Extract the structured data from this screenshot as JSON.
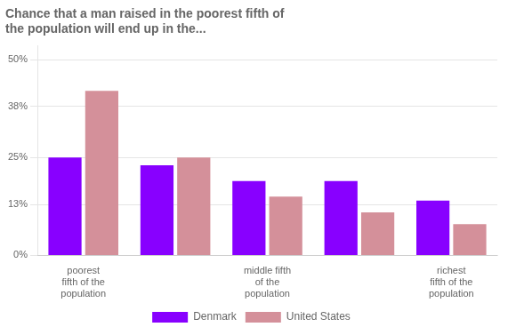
{
  "chart_data": {
    "type": "bar",
    "title": "Chance that a man raised in the poorest fifth of\nthe population will end up in the...",
    "categories": [
      "poorest\nfifth of the\npopulation",
      null,
      "middle fifth\nof the\npopulation",
      null,
      "richest\nfifth of the\npopulation"
    ],
    "series": [
      {
        "name": "Denmark",
        "color": "#8800ff",
        "values": [
          0.25,
          0.23,
          0.19,
          0.19,
          0.14
        ]
      },
      {
        "name": "United States",
        "color": "#d4909a",
        "values": [
          0.42,
          0.25,
          0.15,
          0.11,
          0.08
        ]
      }
    ],
    "ylim": [
      0,
      0.535
    ],
    "yticks": [
      {
        "value": 0.0,
        "label": "0%"
      },
      {
        "value": 0.13,
        "label": "13%"
      },
      {
        "value": 0.25,
        "label": "25%"
      },
      {
        "value": 0.38,
        "label": "38%"
      },
      {
        "value": 0.5,
        "label": "50%"
      }
    ],
    "grid": true,
    "legend": "bottom"
  }
}
